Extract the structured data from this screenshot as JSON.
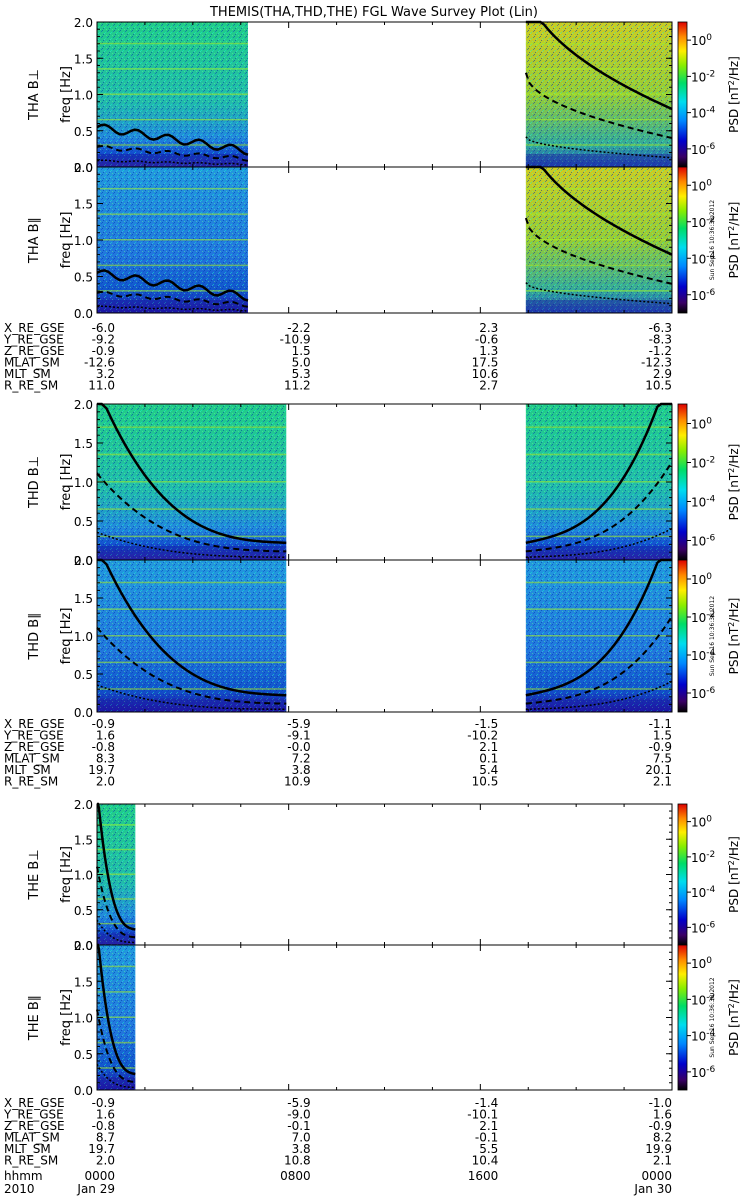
{
  "chart_data": {
    "type": "heatmap",
    "title": "THEMIS(THA,THD,THE) FGL Wave Survey Plot (Lin)",
    "x_axis": {
      "ticks": [
        {
          "hhmm": "0000",
          "date": "Jan 29"
        },
        {
          "hhmm": "0800",
          "date": ""
        },
        {
          "hhmm": "1600",
          "date": ""
        },
        {
          "hhmm": "0000",
          "date": "Jan 30"
        }
      ],
      "row_labels": [
        "hhmm",
        "2010"
      ]
    },
    "colorbar": {
      "label": "PSD [nT2/Hz]",
      "label_base": "PSD [nT",
      "label_sup": "2",
      "label_tail": "/Hz]",
      "tick_base": "10",
      "tick_exponents": [
        "0",
        "-2",
        "-4",
        "-6"
      ],
      "range": [
        1e-07,
        10
      ],
      "scale": "log"
    },
    "y_axis": {
      "label": "freq [Hz]",
      "ticks": [
        "0.0",
        "0.5",
        "1.0",
        "1.5",
        "2.0"
      ],
      "range": [
        0,
        2.0
      ]
    },
    "timestamp": "Sun Sep 16 10:36:38 2012",
    "probes": [
      {
        "id": "THA",
        "panels": [
          {
            "label": "THA B⊥",
            "data_intervals_hours": [
              [
                0,
                6.3
              ],
              [
                17.9,
                24
              ]
            ]
          },
          {
            "label": "THA B∥",
            "data_intervals_hours": [
              [
                0,
                6.3
              ],
              [
                17.9,
                24
              ]
            ]
          }
        ],
        "ephemeris": {
          "names": [
            "X_RE_GSE",
            "Y_RE_GSE",
            "Z_RE_GSE",
            "MLAT_SM",
            "MLT_SM",
            "R_RE_SM"
          ],
          "values": [
            [
              "-6.0",
              "-2.2",
              "2.3",
              "-6.3"
            ],
            [
              "-9.2",
              "-10.9",
              "-0.6",
              "-8.3"
            ],
            [
              "-0.9",
              "1.5",
              "1.3",
              "-1.2"
            ],
            [
              "-12.6",
              "5.0",
              "17.5",
              "-12.3"
            ],
            [
              "3.2",
              "5.3",
              "10.6",
              "2.9"
            ],
            [
              "11.0",
              "11.2",
              "2.7",
              "10.5"
            ]
          ]
        }
      },
      {
        "id": "THD",
        "panels": [
          {
            "label": "THD B⊥",
            "data_intervals_hours": [
              [
                0,
                7.9
              ],
              [
                17.9,
                24
              ]
            ]
          },
          {
            "label": "THD B∥",
            "data_intervals_hours": [
              [
                0,
                7.9
              ],
              [
                17.9,
                24
              ]
            ]
          }
        ],
        "ephemeris": {
          "names": [
            "X_RE_GSE",
            "Y_RE_GSE",
            "Z_RE_GSE",
            "MLAT_SM",
            "MLT_SM",
            "R_RE_SM"
          ],
          "values": [
            [
              "-0.9",
              "-5.9",
              "-1.5",
              "-1.1"
            ],
            [
              "1.6",
              "-9.1",
              "-10.2",
              "1.5"
            ],
            [
              "-0.8",
              "-0.0",
              "2.1",
              "-0.9"
            ],
            [
              "8.3",
              "7.2",
              "0.1",
              "7.5"
            ],
            [
              "19.7",
              "3.8",
              "5.4",
              "20.1"
            ],
            [
              "2.0",
              "10.9",
              "10.5",
              "2.1"
            ]
          ]
        }
      },
      {
        "id": "THE",
        "panels": [
          {
            "label": "THE B⊥",
            "data_intervals_hours": [
              [
                0,
                1.6
              ]
            ]
          },
          {
            "label": "THE B∥",
            "data_intervals_hours": [
              [
                0,
                1.6
              ]
            ]
          }
        ],
        "ephemeris": {
          "names": [
            "X_RE_GSE",
            "Y_RE_GSE",
            "Z_RE_GSE",
            "MLAT_SM",
            "MLT_SM",
            "R_RE_SM"
          ],
          "values": [
            [
              "-0.9",
              "-5.9",
              "-1.4",
              "-1.0"
            ],
            [
              "1.6",
              "-9.0",
              "-10.1",
              "1.6"
            ],
            [
              "-0.8",
              "-0.1",
              "2.1",
              "-0.9"
            ],
            [
              "8.7",
              "7.0",
              "-0.1",
              "8.2"
            ],
            [
              "19.7",
              "3.8",
              "5.5",
              "19.9"
            ],
            [
              "2.0",
              "10.8",
              "10.4",
              "2.1"
            ]
          ]
        }
      }
    ]
  }
}
